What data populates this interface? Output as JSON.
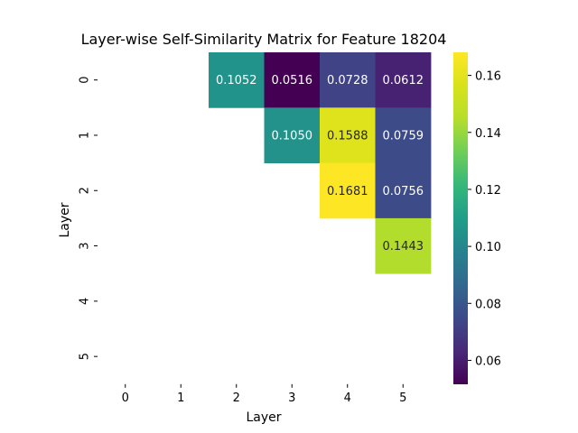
{
  "chart_data": {
    "type": "heatmap",
    "title": "Layer-wise Self-Similarity Matrix for Feature 18204",
    "xlabel": "Layer",
    "ylabel": "Layer",
    "x_categories": [
      "0",
      "1",
      "2",
      "3",
      "4",
      "5"
    ],
    "y_categories": [
      "0",
      "1",
      "2",
      "3",
      "4",
      "5"
    ],
    "cells": [
      {
        "row": 0,
        "col": 2,
        "value": 0.1052,
        "label": "0.1052"
      },
      {
        "row": 0,
        "col": 3,
        "value": 0.0516,
        "label": "0.0516"
      },
      {
        "row": 0,
        "col": 4,
        "value": 0.0728,
        "label": "0.0728"
      },
      {
        "row": 0,
        "col": 5,
        "value": 0.0612,
        "label": "0.0612"
      },
      {
        "row": 1,
        "col": 3,
        "value": 0.105,
        "label": "0.1050"
      },
      {
        "row": 1,
        "col": 4,
        "value": 0.1588,
        "label": "0.1588"
      },
      {
        "row": 1,
        "col": 5,
        "value": 0.0759,
        "label": "0.0759"
      },
      {
        "row": 2,
        "col": 4,
        "value": 0.1681,
        "label": "0.1681"
      },
      {
        "row": 2,
        "col": 5,
        "value": 0.0756,
        "label": "0.0756"
      },
      {
        "row": 3,
        "col": 5,
        "value": 0.1443,
        "label": "0.1443"
      }
    ],
    "colorbar": {
      "colormap": "viridis",
      "vmin": 0.0516,
      "vmax": 0.1681,
      "ticks": [
        "0.06",
        "0.08",
        "0.10",
        "0.12",
        "0.14",
        "0.16"
      ]
    }
  }
}
